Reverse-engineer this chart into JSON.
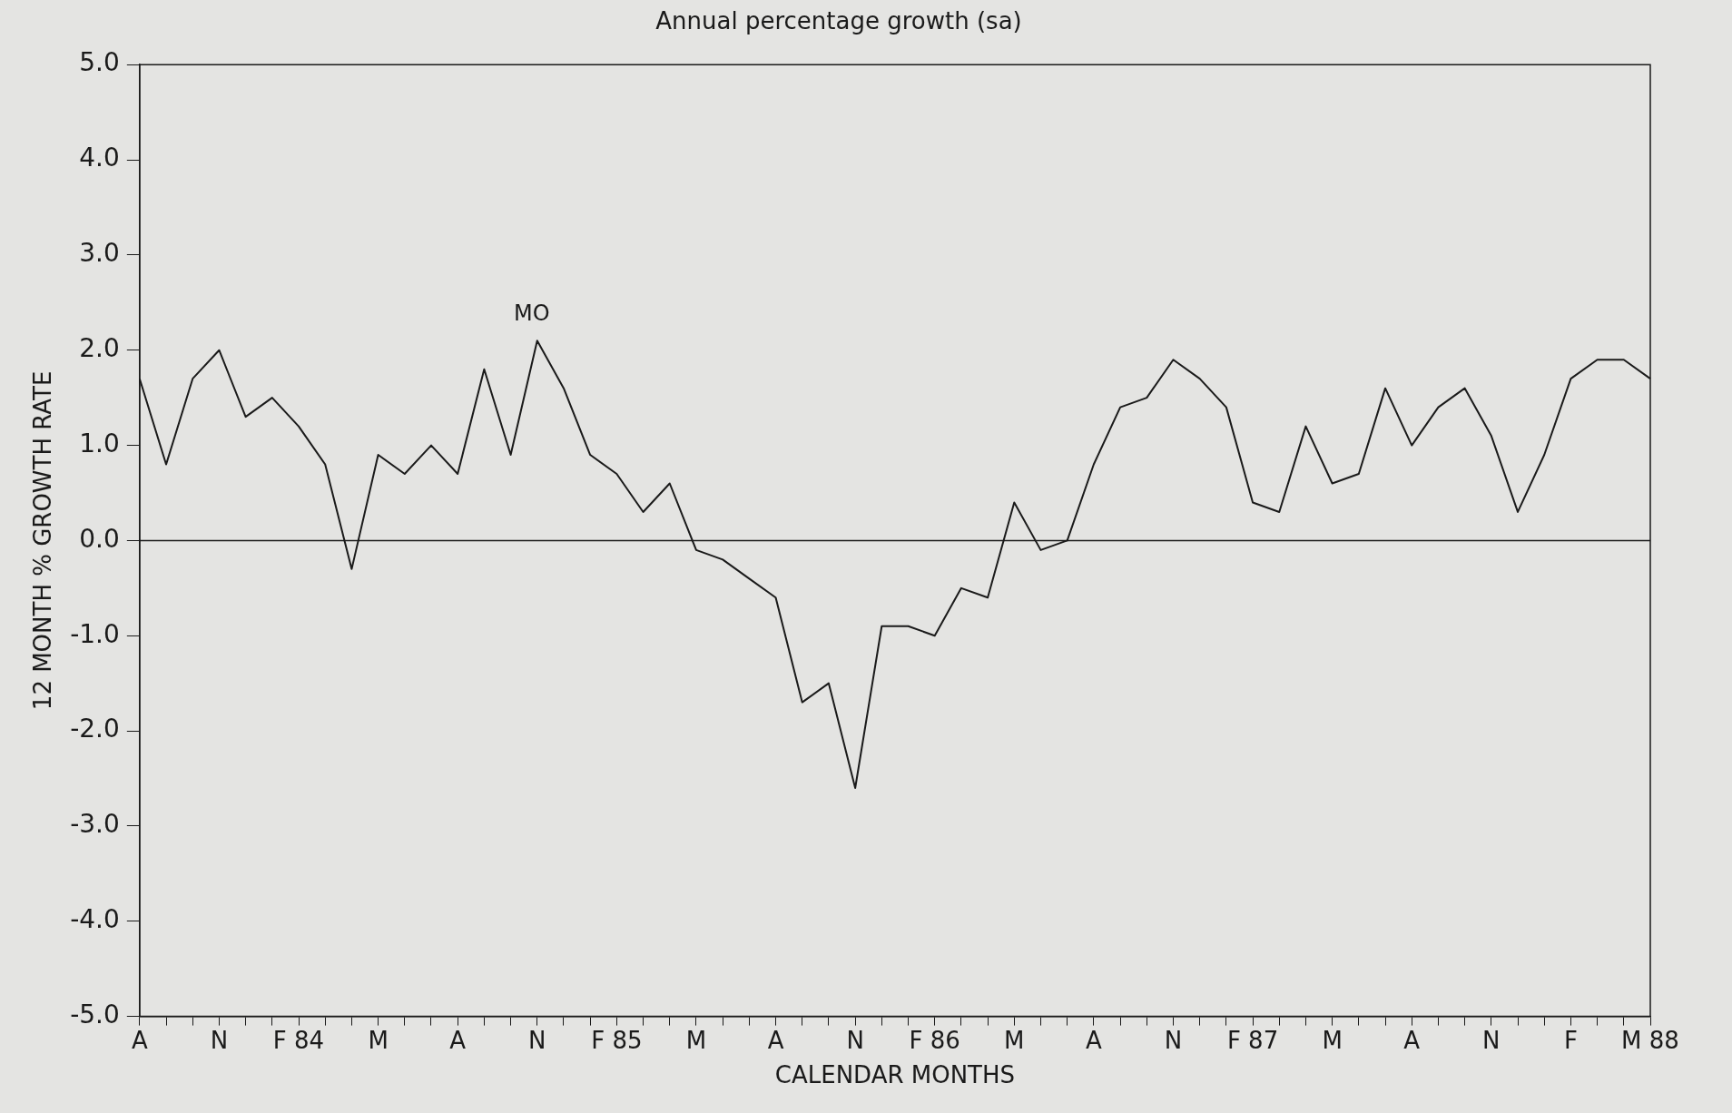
{
  "chart_data": {
    "type": "line",
    "title": "Annual percentage growth (sa)",
    "xlabel": "CALENDAR MONTHS",
    "ylabel": "12 MONTH % GROWTH RATE",
    "categories": [
      "A",
      null,
      null,
      "N",
      null,
      null,
      "F 84",
      null,
      null,
      "M",
      null,
      null,
      "A",
      null,
      null,
      "N",
      null,
      null,
      "F 85",
      null,
      null,
      "M",
      null,
      null,
      "A",
      null,
      null,
      "N",
      null,
      null,
      "F 86",
      null,
      null,
      "M",
      null,
      null,
      "A",
      null,
      null,
      "N",
      null,
      null,
      "F 87",
      null,
      null,
      "M",
      null,
      null,
      "A",
      null,
      null,
      "N",
      null,
      null,
      "F",
      null,
      null,
      "M 88"
    ],
    "series": [
      {
        "name": "MO",
        "color": "#1a1a1a",
        "values": [
          1.7,
          0.8,
          1.7,
          2.0,
          1.3,
          1.5,
          1.2,
          0.8,
          -0.3,
          0.9,
          0.7,
          1.0,
          0.7,
          1.8,
          0.9,
          2.1,
          1.6,
          0.9,
          0.7,
          0.3,
          0.6,
          -0.1,
          -0.2,
          -0.4,
          -0.6,
          -1.7,
          -1.5,
          -2.6,
          -0.9,
          -0.9,
          -1.0,
          -0.5,
          -0.6,
          0.4,
          -0.1,
          0.0,
          0.8,
          1.4,
          1.5,
          1.9,
          1.7,
          1.4,
          0.4,
          0.3,
          1.2,
          0.6,
          0.7,
          1.6,
          1.0,
          1.4,
          1.6,
          1.1,
          0.3,
          0.9,
          1.7,
          1.9,
          1.9,
          1.7
        ]
      }
    ],
    "ylim": [
      -5,
      5
    ],
    "yticks": [
      {
        "value": -5,
        "label": "-5.0"
      },
      {
        "value": -4,
        "label": "-4.0"
      },
      {
        "value": -3,
        "label": "-3.0"
      },
      {
        "value": -2,
        "label": "-2.0"
      },
      {
        "value": -1,
        "label": "-1.0"
      },
      {
        "value": 0,
        "label": "0.0"
      },
      {
        "value": 1,
        "label": "1.0"
      },
      {
        "value": 2,
        "label": "2.0"
      },
      {
        "value": 3,
        "label": "3.0"
      },
      {
        "value": 4,
        "label": "4.0"
      },
      {
        "value": 5,
        "label": "5.0"
      }
    ],
    "ref_lines": [
      {
        "axis": "y",
        "value": 0,
        "color": "#1a1a1a"
      }
    ],
    "grid": false,
    "legend": false,
    "marker": "none",
    "line_style": "solid"
  }
}
